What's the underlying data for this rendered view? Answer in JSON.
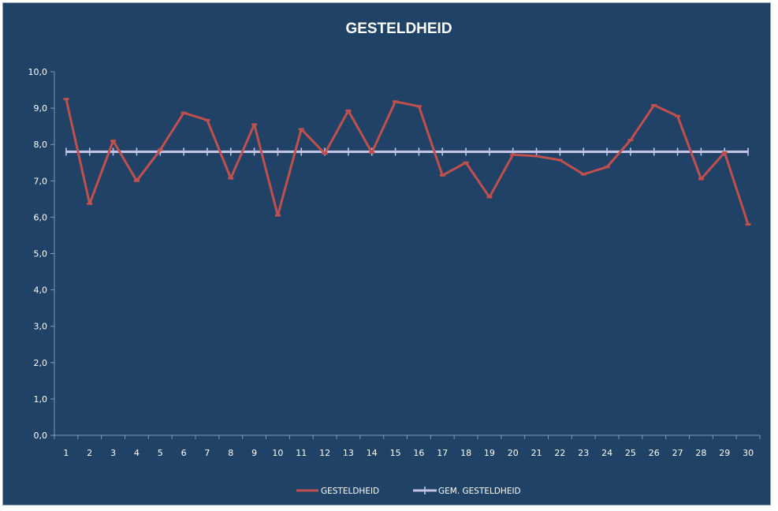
{
  "chart_data": {
    "type": "line",
    "title": "GESTELDHEID",
    "x": [
      "1",
      "2",
      "3",
      "4",
      "5",
      "6",
      "7",
      "8",
      "9",
      "10",
      "11",
      "12",
      "13",
      "14",
      "15",
      "16",
      "17",
      "18",
      "19",
      "20",
      "21",
      "22",
      "23",
      "24",
      "25",
      "26",
      "27",
      "28",
      "29",
      "30"
    ],
    "series": [
      {
        "name": "GESTELDHEID",
        "color": "#c0504d",
        "values": [
          9.25,
          6.37,
          8.1,
          7.0,
          7.85,
          8.87,
          8.67,
          7.07,
          8.55,
          6.05,
          8.42,
          7.75,
          8.93,
          7.78,
          9.18,
          9.05,
          7.15,
          7.5,
          6.55,
          7.72,
          7.68,
          7.57,
          7.18,
          7.38,
          8.12,
          9.08,
          8.78,
          7.05,
          7.78,
          5.8
        ]
      },
      {
        "name": "GEM. GESTELDHEID",
        "color": "#c3c3e6",
        "values": [
          7.8,
          7.8,
          7.8,
          7.8,
          7.8,
          7.8,
          7.8,
          7.8,
          7.8,
          7.8,
          7.8,
          7.8,
          7.8,
          7.8,
          7.8,
          7.8,
          7.8,
          7.8,
          7.8,
          7.8,
          7.8,
          7.8,
          7.8,
          7.8,
          7.8,
          7.8,
          7.8,
          7.8,
          7.8,
          7.8
        ]
      }
    ],
    "y_ticks": [
      "0,0",
      "1,0",
      "2,0",
      "3,0",
      "4,0",
      "5,0",
      "6,0",
      "7,0",
      "8,0",
      "9,0",
      "10,0"
    ],
    "ylim": [
      0,
      10
    ],
    "grid": false,
    "legend_position": "bottom",
    "background_color": "#1f4266",
    "axis_color": "#7f9ab3"
  }
}
